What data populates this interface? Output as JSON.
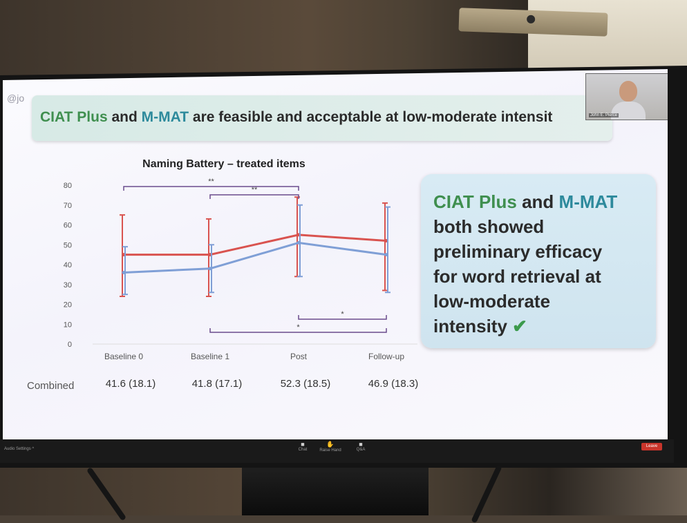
{
  "slide": {
    "handle": "@jo",
    "title": {
      "part1": "CIAT Plus",
      "part2": " and ",
      "part3": "M-MAT",
      "part4": " are feasible and acceptable at low-moderate intensit"
    },
    "callout": {
      "line1_a": "CIAT Plus",
      "line1_b": " and ",
      "line1_c": "M-MAT",
      "line2": "both showed",
      "line3": "preliminary efficacy",
      "line4": "for word retrieval at",
      "line5": "low-moderate",
      "line6": "intensity",
      "check_icon": "✔"
    },
    "colors": {
      "green": "#3f8f4f",
      "teal": "#2d8a9c",
      "red_series": "#d9534f",
      "blue_series": "#7f9fd6"
    }
  },
  "video": {
    "name": "John E. Pierce"
  },
  "chart_data": {
    "type": "line",
    "title": "Naming Battery – treated items",
    "categories": [
      "Baseline 0",
      "Baseline 1",
      "Post",
      "Follow-up"
    ],
    "series": [
      {
        "color": "#d9534f",
        "values": [
          45,
          45,
          55,
          52
        ],
        "err_low": [
          24,
          24,
          34,
          27
        ],
        "err_high": [
          65,
          63,
          74,
          71
        ]
      },
      {
        "color": "#7f9fd6",
        "values": [
          36,
          38,
          51,
          45
        ],
        "err_low": [
          25,
          26,
          34,
          26
        ],
        "err_high": [
          49,
          50,
          70,
          69
        ]
      }
    ],
    "ylim": [
      0,
      80
    ],
    "yticks": [
      "0",
      "10",
      "20",
      "30",
      "40",
      "50",
      "60",
      "70",
      "80"
    ],
    "significance": [
      {
        "from": 0,
        "to": 2,
        "label": "**",
        "side": "top"
      },
      {
        "from": 1,
        "to": 2,
        "label": "**",
        "side": "top"
      },
      {
        "from": 2,
        "to": 3,
        "label": "*",
        "side": "bottom"
      },
      {
        "from": 1,
        "to": 3,
        "label": "*",
        "side": "bottom"
      }
    ],
    "table": {
      "row_label": "Combined",
      "values": [
        "41.6 (18.1)",
        "41.8 (17.1)",
        "52.3 (18.5)",
        "46.9 (18.3)"
      ]
    }
  },
  "toolbar": {
    "audio": "Audio Settings ^",
    "chat": "Chat",
    "raise_hand": "Raise Hand",
    "qa": "Q&A",
    "leave": "Leave"
  }
}
